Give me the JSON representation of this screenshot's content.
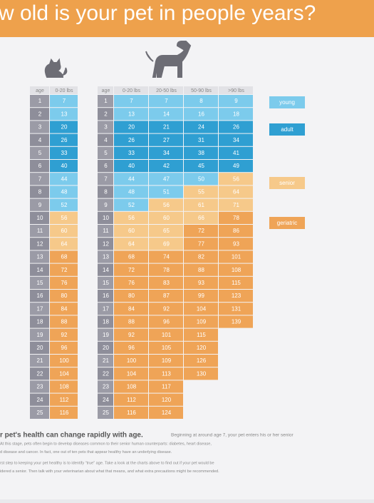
{
  "title": "w old is your pet in people years?",
  "cat_table": {
    "headers": [
      "age",
      "0-20 lbs"
    ],
    "ages": [
      1,
      2,
      3,
      4,
      5,
      6,
      7,
      8,
      9,
      10,
      11,
      12,
      13,
      14,
      15,
      16,
      17,
      18,
      19,
      20,
      21,
      22,
      23,
      24,
      25
    ],
    "columns": [
      {
        "values": [
          7,
          13,
          20,
          26,
          33,
          40,
          44,
          48,
          52,
          56,
          60,
          64,
          68,
          72,
          76,
          80,
          84,
          88,
          92,
          96,
          100,
          104,
          108,
          112,
          116
        ],
        "colors": [
          "#7ccbec",
          "#7ccbec",
          "#2f9fd2",
          "#2f9fd2",
          "#2f9fd2",
          "#2f9fd2",
          "#7ccbec",
          "#7ccbec",
          "#7ccbec",
          "#f6c98a",
          "#f6c98a",
          "#f6c98a",
          "#efa457",
          "#efa457",
          "#efa457",
          "#efa457",
          "#efa457",
          "#efa457",
          "#efa457",
          "#efa457",
          "#efa457",
          "#efa457",
          "#efa457",
          "#efa457",
          "#efa457"
        ]
      }
    ]
  },
  "dog_table": {
    "headers": [
      "age",
      "0-20 lbs",
      "20-50 lbs",
      "50-90 lbs",
      ">90 lbs"
    ],
    "ages": [
      1,
      2,
      3,
      4,
      5,
      6,
      7,
      8,
      9,
      10,
      11,
      12,
      13,
      14,
      15,
      16,
      17,
      18,
      19,
      20,
      21,
      22,
      23,
      24,
      25
    ],
    "columns": [
      {
        "values": [
          7,
          13,
          20,
          26,
          33,
          40,
          44,
          48,
          52,
          56,
          60,
          64,
          68,
          72,
          76,
          80,
          84,
          88,
          92,
          96,
          100,
          104,
          108,
          112,
          116
        ],
        "colors": [
          "#7ccbec",
          "#7ccbec",
          "#2f9fd2",
          "#2f9fd2",
          "#2f9fd2",
          "#2f9fd2",
          "#7ccbec",
          "#7ccbec",
          "#7ccbec",
          "#f6c98a",
          "#f6c98a",
          "#f6c98a",
          "#efa457",
          "#efa457",
          "#efa457",
          "#efa457",
          "#efa457",
          "#efa457",
          "#efa457",
          "#efa457",
          "#efa457",
          "#efa457",
          "#efa457",
          "#efa457",
          "#efa457"
        ]
      },
      {
        "values": [
          7,
          14,
          21,
          27,
          34,
          42,
          47,
          51,
          56,
          60,
          65,
          69,
          74,
          78,
          83,
          87,
          92,
          96,
          101,
          105,
          109,
          113,
          117,
          120,
          124
        ],
        "colors": [
          "#7ccbec",
          "#7ccbec",
          "#2f9fd2",
          "#2f9fd2",
          "#2f9fd2",
          "#2f9fd2",
          "#7ccbec",
          "#7ccbec",
          "#f6c98a",
          "#f6c98a",
          "#f6c98a",
          "#f6c98a",
          "#efa457",
          "#efa457",
          "#efa457",
          "#efa457",
          "#efa457",
          "#efa457",
          "#efa457",
          "#efa457",
          "#efa457",
          "#efa457",
          "#efa457",
          "#efa457",
          "#efa457"
        ]
      },
      {
        "values": [
          8,
          16,
          24,
          31,
          38,
          45,
          50,
          55,
          61,
          66,
          72,
          77,
          82,
          88,
          93,
          99,
          104,
          109,
          115,
          120,
          126,
          130
        ],
        "colors": [
          "#7ccbec",
          "#7ccbec",
          "#2f9fd2",
          "#2f9fd2",
          "#2f9fd2",
          "#2f9fd2",
          "#7ccbec",
          "#f6c98a",
          "#f6c98a",
          "#f6c98a",
          "#efa457",
          "#efa457",
          "#efa457",
          "#efa457",
          "#efa457",
          "#efa457",
          "#efa457",
          "#efa457",
          "#efa457",
          "#efa457",
          "#efa457",
          "#efa457"
        ]
      },
      {
        "values": [
          9,
          18,
          26,
          34,
          41,
          49,
          56,
          64,
          71,
          78,
          86,
          93,
          101,
          108,
          115,
          123,
          131,
          139
        ],
        "colors": [
          "#7ccbec",
          "#7ccbec",
          "#2f9fd2",
          "#2f9fd2",
          "#2f9fd2",
          "#2f9fd2",
          "#f6c98a",
          "#f6c98a",
          "#f6c98a",
          "#efa457",
          "#efa457",
          "#efa457",
          "#efa457",
          "#efa457",
          "#efa457",
          "#efa457",
          "#efa457",
          "#efa457"
        ]
      }
    ]
  },
  "legend": [
    {
      "label": "young",
      "color": "#7ccbec"
    },
    {
      "label": "adult",
      "color": "#2f9fd2"
    },
    {
      "label": "senior",
      "color": "#f6c98a"
    },
    {
      "label": "geriatric",
      "color": "#efa457"
    }
  ],
  "footer": {
    "heading": "r pet's health can change rapidly with age.",
    "lines": [
      "Beginning at around age 7, your pet enters his or her senior",
      "At this stage, pets often begin to develop diseases common to their senior human counterparts: diabetes, heart disease,",
      "d disease and cancer. In fact, one out of ten pets that appear healthy have an underlying disease.",
      "rst step to keeping your pet healthy is to identify “true” age. Take a look at the charts above to find out if your pet would be",
      "idered a senior. Then talk with your veterinarian about what that means, and what extra precautions might be recommended."
    ]
  }
}
